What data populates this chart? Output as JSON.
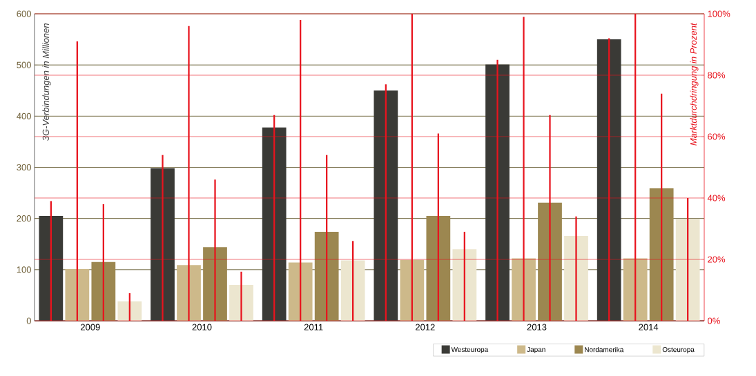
{
  "chart_data": {
    "type": "bar",
    "ylabel": "3G-Verbindungen in Millionen",
    "y2label": "Marktdurchdringung in Prozent",
    "categories": [
      "2009",
      "2010",
      "2011",
      "2012",
      "2013",
      "2014"
    ],
    "series": [
      {
        "name": "Westeuropa",
        "color": "#3a3a36",
        "values": [
          205,
          298,
          378,
          450,
          501,
          550
        ]
      },
      {
        "name": "Japan",
        "color": "#cdb98a",
        "values": [
          101,
          109,
          114,
          119,
          122,
          122
        ]
      },
      {
        "name": "Nordamerika",
        "color": "#9c8750",
        "values": [
          115,
          144,
          174,
          205,
          231,
          259
        ]
      },
      {
        "name": "Osteuropa",
        "color": "#ece6cf",
        "values": [
          38,
          70,
          118,
          140,
          166,
          199
        ]
      },
      {
        "axis": "y2",
        "color": "#e8141e",
        "values": [
          39,
          54,
          67,
          77,
          85,
          92
        ]
      },
      {
        "axis": "y2",
        "color": "#e8141e",
        "values": [
          91,
          96,
          98,
          100,
          99,
          100
        ]
      },
      {
        "axis": "y2",
        "color": "#e8141e",
        "values": [
          38,
          46,
          54,
          61,
          67,
          74
        ]
      },
      {
        "axis": "y2",
        "color": "#e8141e",
        "values": [
          9,
          16,
          26,
          29,
          34,
          40
        ]
      }
    ],
    "ylim": [
      0,
      600
    ],
    "yticks": [
      0,
      100,
      200,
      300,
      400,
      500,
      600
    ],
    "y2lim": [
      0,
      100
    ],
    "y2ticks": [
      {
        "value": 0,
        "label": "0%"
      },
      {
        "value": 20,
        "label": "20%"
      },
      {
        "value": 40,
        "label": "40%"
      },
      {
        "value": 60,
        "label": "60%"
      },
      {
        "value": 80,
        "label": "80%"
      },
      {
        "value": 100,
        "label": "100%"
      }
    ],
    "grid": "y",
    "legend": "bottom right"
  }
}
